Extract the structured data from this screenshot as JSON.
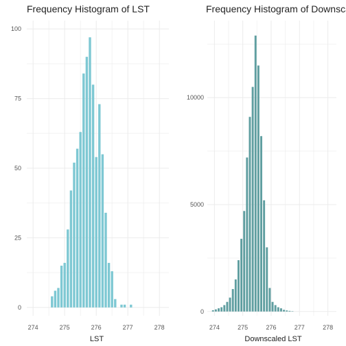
{
  "chart_data": [
    {
      "type": "bar",
      "title": "Frequency Histogram of LST",
      "xlabel": "LST",
      "ylabel": "",
      "color": "#7ec8d3",
      "xlim": [
        273.8,
        278.3
      ],
      "ylim": [
        -3,
        103
      ],
      "grid": true,
      "x_ticks": [
        274,
        275,
        276,
        277,
        278
      ],
      "x_tick_labels": [
        "274",
        "275",
        "276",
        "277",
        "278"
      ],
      "y_ticks": [
        0,
        25,
        50,
        75,
        100
      ],
      "y_tick_labels": [
        "0",
        "25",
        "50",
        "75",
        "100"
      ],
      "bin_width": 0.1,
      "bin_centers": [
        274.6,
        274.7,
        274.8,
        274.9,
        275.0,
        275.1,
        275.2,
        275.3,
        275.4,
        275.5,
        275.6,
        275.7,
        275.8,
        275.9,
        276.0,
        276.1,
        276.2,
        276.3,
        276.4,
        276.5,
        276.6,
        276.7,
        276.8,
        276.9,
        277.0,
        277.1,
        277.2,
        277.3,
        277.4,
        277.5
      ],
      "values": [
        4,
        6,
        7,
        15,
        16,
        28,
        42,
        52,
        57,
        63,
        84,
        90,
        97,
        80,
        54,
        73,
        55,
        34,
        16,
        13,
        3,
        0,
        1,
        1,
        0,
        1,
        0,
        0,
        0,
        0
      ]
    },
    {
      "type": "bar",
      "title": "Frequency Histogram of Downscale",
      "xlabel": "Downscaled LST",
      "ylabel": "",
      "color": "#5f9ea0",
      "xlim": [
        273.75,
        278.3
      ],
      "ylim": [
        -200,
        13600
      ],
      "grid": true,
      "x_ticks": [
        274,
        275,
        276,
        277,
        278
      ],
      "x_tick_labels": [
        "274",
        "275",
        "276",
        "277",
        "278"
      ],
      "y_ticks": [
        0,
        5000,
        10000
      ],
      "y_tick_labels": [
        "0",
        "5000",
        "10000"
      ],
      "bin_width": 0.1,
      "bin_centers": [
        273.95,
        274.05,
        274.15,
        274.25,
        274.35,
        274.45,
        274.55,
        274.65,
        274.75,
        274.85,
        274.95,
        275.05,
        275.15,
        275.25,
        275.35,
        275.45,
        275.55,
        275.65,
        275.75,
        275.85,
        275.95,
        276.05,
        276.15,
        276.25,
        276.35,
        276.45,
        276.55,
        276.65,
        276.75,
        276.85,
        276.95,
        277.05,
        277.15,
        277.25,
        277.35,
        277.45,
        277.55,
        277.65,
        277.75,
        277.85
      ],
      "values": [
        60,
        100,
        150,
        200,
        300,
        450,
        650,
        1050,
        1500,
        2400,
        3400,
        4700,
        7200,
        9100,
        10500,
        12900,
        11500,
        8200,
        5200,
        3000,
        1100,
        450,
        300,
        200,
        150,
        80,
        50,
        30,
        10,
        0,
        0,
        0,
        0,
        0,
        0,
        0,
        0,
        0,
        0,
        0
      ]
    }
  ]
}
